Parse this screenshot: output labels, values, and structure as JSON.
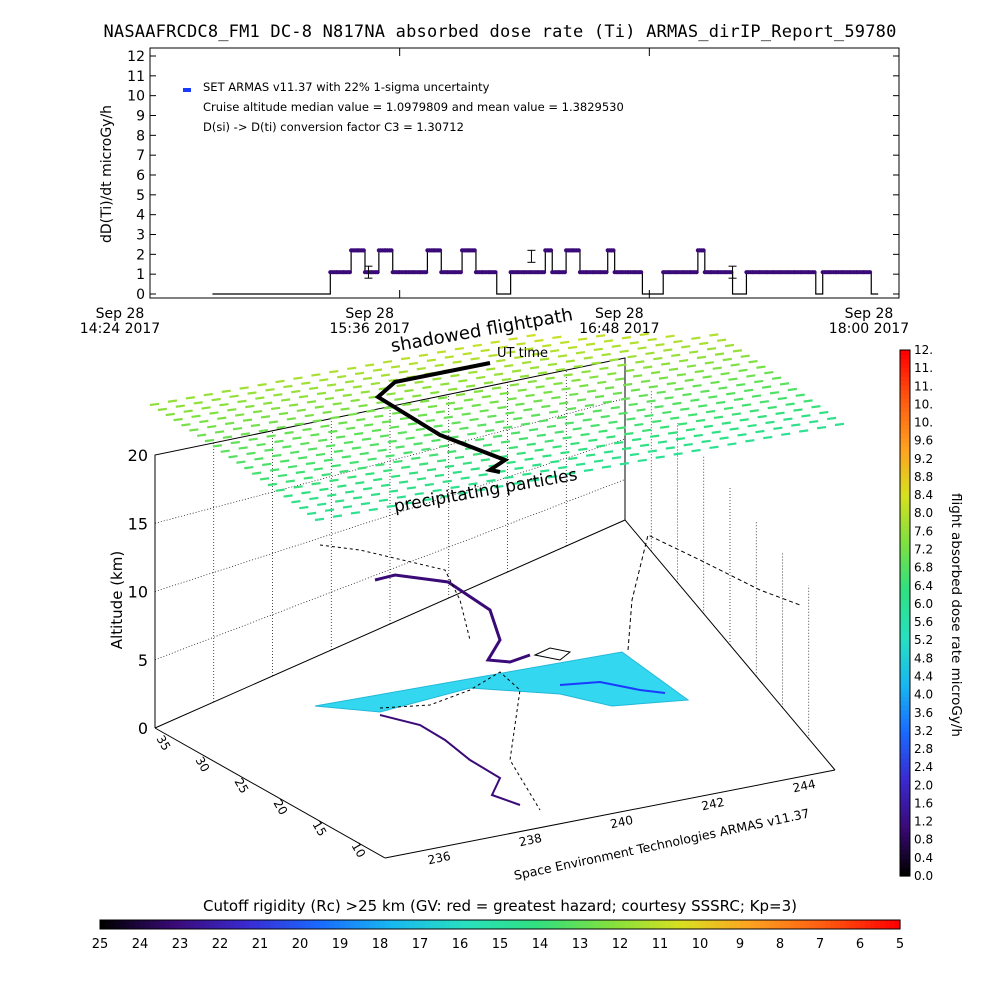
{
  "title": "NASAAFRCDC8_FM1 DC-8   N817NA absorbed dose rate (Ti) ARMAS_dirIP_Report_59780",
  "chart_data": [
    {
      "type": "line",
      "ylabel": "dD(Ti)/dt microGy/h",
      "ylim": [
        0,
        12
      ],
      "yticks": [
        "0",
        "1",
        "2",
        "3",
        "4",
        "5",
        "6",
        "7",
        "8",
        "9",
        "10",
        "11",
        "12"
      ],
      "xlim": [
        0,
        216
      ],
      "xticks": [
        {
          "minute": 0,
          "line1": "Sep 28",
          "line2": "14:24 2017"
        },
        {
          "minute": 72,
          "line1": "Sep 28",
          "line2": "15:36 2017"
        },
        {
          "minute": 144,
          "line1": "Sep 28",
          "line2": "16:48 2017"
        },
        {
          "minute": 216,
          "line1": "Sep 28",
          "line2": "18:00 2017"
        }
      ],
      "annotations": [
        "SET ARMAS v11.37 with 22% 1-sigma uncertainty",
        "Cruise altitude median value = 1.0979809 and mean value = 1.3829530",
        "D(si) -> D(ti) conversion factor C3 = 1.30712"
      ],
      "legend_color": "#1a3aff",
      "series": [
        {
          "x_minutes": [
            18,
            22,
            26,
            30,
            34,
            38,
            42,
            46,
            50,
            52,
            54,
            56,
            58,
            60,
            62,
            64,
            66,
            68,
            70,
            72,
            74,
            76,
            78,
            80,
            82,
            84,
            86,
            88,
            90,
            92,
            94,
            96,
            98,
            100,
            102,
            104,
            106,
            108,
            110,
            112,
            114,
            116,
            118,
            120,
            122,
            124,
            126,
            128,
            130,
            132,
            134,
            136,
            138,
            140,
            142,
            144,
            146,
            148,
            150,
            152,
            154,
            156,
            158,
            160,
            162,
            164,
            166,
            168,
            170,
            172,
            174,
            176,
            178,
            180,
            182,
            184,
            186,
            188,
            190,
            192,
            194,
            196,
            198,
            200,
            202,
            204,
            206,
            208,
            210
          ],
          "values": [
            0,
            0,
            0,
            0,
            0,
            0,
            0,
            0,
            0,
            1.1,
            1.1,
            1.1,
            2.2,
            2.2,
            1.1,
            1.1,
            2.2,
            2.2,
            1.1,
            1.1,
            1.1,
            1.1,
            1.1,
            2.2,
            2.2,
            1.1,
            1.1,
            1.1,
            2.2,
            2.2,
            1.1,
            1.1,
            1.1,
            0,
            0,
            1.1,
            1.1,
            1.1,
            1.1,
            1.1,
            2.2,
            1.1,
            1.1,
            2.2,
            2.2,
            1.1,
            1.1,
            1.1,
            1.1,
            2.2,
            1.1,
            1.1,
            1.1,
            1.1,
            0,
            0,
            0,
            1.1,
            1.1,
            1.1,
            1.1,
            1.1,
            2.2,
            1.1,
            1.1,
            1.1,
            1.1,
            0,
            0,
            1.1,
            1.1,
            1.1,
            1.1,
            1.1,
            1.1,
            1.1,
            1.1,
            1.1,
            1.1,
            0,
            1.1,
            1.1,
            1.1,
            1.1,
            1.1,
            1.1,
            1.1,
            0,
            0
          ]
        }
      ],
      "error_bars": [
        {
          "minute": 63,
          "value": 1.1
        },
        {
          "minute": 110,
          "value": 1.9
        },
        {
          "minute": 168,
          "value": 1.1
        }
      ]
    },
    {
      "type": "3d-trajectory",
      "zlabel": "Altitude (km)",
      "zlim": [
        0,
        20
      ],
      "zticks": [
        "0",
        "5",
        "10",
        "15",
        "20"
      ],
      "y_ticks": [
        "10",
        "15",
        "20",
        "25",
        "30",
        "35"
      ],
      "x_ticks": [
        "236",
        "238",
        "240",
        "242",
        "244"
      ],
      "annotations": [
        "shadowed flightpath",
        "UT time",
        "precipitating particles"
      ],
      "credit": "Space Environment Technologies ARMAS v11.37",
      "colorbar": {
        "label": "flight absorbed dose rate microGy/h",
        "ticks": [
          "0.0",
          "0.4",
          "0.8",
          "1.2",
          "1.6",
          "2.0",
          "2.4",
          "2.8",
          "3.2",
          "3.6",
          "4.0",
          "4.4",
          "4.8",
          "5.2",
          "5.6",
          "6.0",
          "6.4",
          "6.8",
          "7.2",
          "7.6",
          "8.0",
          "8.4",
          "8.8",
          "9.2",
          "9.6",
          "10.",
          "10.",
          "11.",
          "11.",
          "12."
        ]
      }
    },
    {
      "type": "colorbar",
      "title": "Cutoff rigidity (Rc) >25 km (GV: red = greatest hazard; courtesy SSSRC; Kp=3)",
      "ticks": [
        "25",
        "24",
        "23",
        "22",
        "21",
        "20",
        "19",
        "18",
        "17",
        "16",
        "15",
        "14",
        "13",
        "12",
        "11",
        "10",
        "9",
        "8",
        "7",
        "6",
        "5"
      ]
    }
  ],
  "colors": {
    "plot_line": "#000000",
    "dose_marker": "#3a0a78",
    "precip_particles": "#3ee0c6",
    "footprint": "#33d8f0"
  }
}
